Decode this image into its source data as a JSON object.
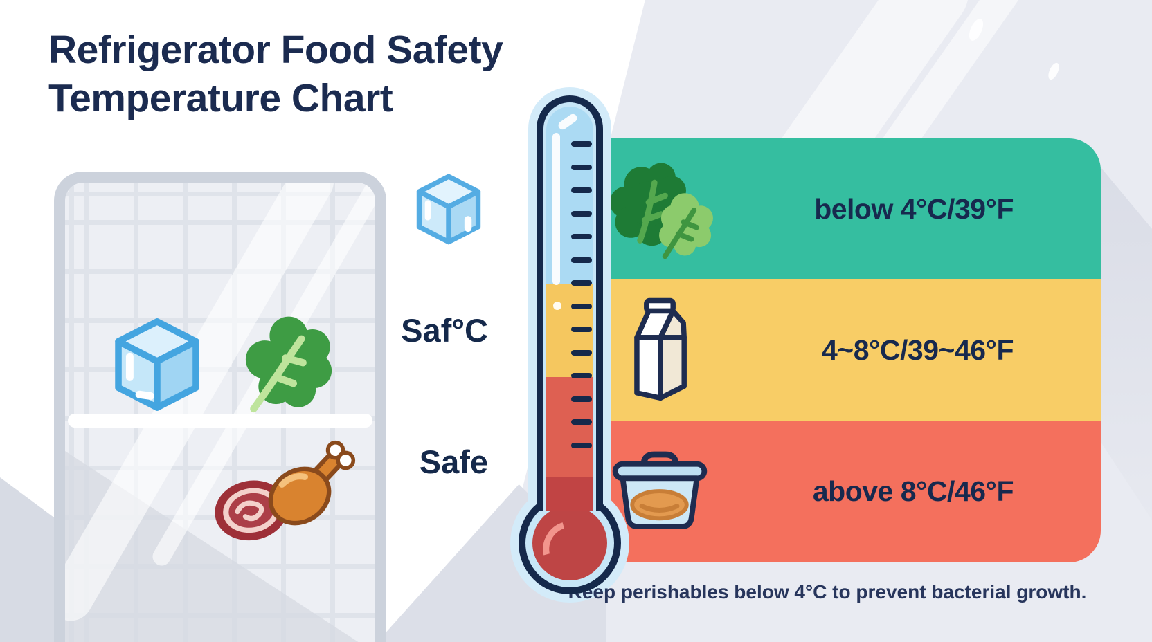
{
  "title": {
    "line1": "Refrigerator Food Safety",
    "line2": "Temperature Chart"
  },
  "fridge": {
    "icons": [
      "ice-cube-icon",
      "lettuce-icon",
      "steak-icon",
      "drumstick-icon"
    ]
  },
  "thermometer": {
    "scale_label_mid": "Saf°C",
    "scale_label_low": "Safe",
    "side_icon": "ice-cube-icon",
    "tick_count": 14,
    "fill_colors": {
      "glass_blue": "#C7E6F7",
      "cold_blue": "#ABDAF3",
      "caution_yellow": "#F5C75F",
      "warm_salmon": "#DE6052",
      "mercury_red": "#C14444",
      "outline_navy": "#15294B"
    }
  },
  "zones": [
    {
      "id": "cold",
      "label": "below 4°C/39°F",
      "color": "#35BEA0",
      "icon": "leafy-greens-icon"
    },
    {
      "id": "caution",
      "label": "4~8°C/39~46°F",
      "color": "#F8CD66",
      "icon": "milk-carton-icon"
    },
    {
      "id": "danger",
      "label": "above 8°C/46°F",
      "color": "#F4705D",
      "icon": "food-container-icon"
    }
  ],
  "footnote": "Keep perishables below 4°C to prevent bacterial growth.",
  "palette": {
    "text_navy": "#1B2B50",
    "background_lavender": "#E9EBF2",
    "fridge_border_gray": "#CCD2DC"
  }
}
